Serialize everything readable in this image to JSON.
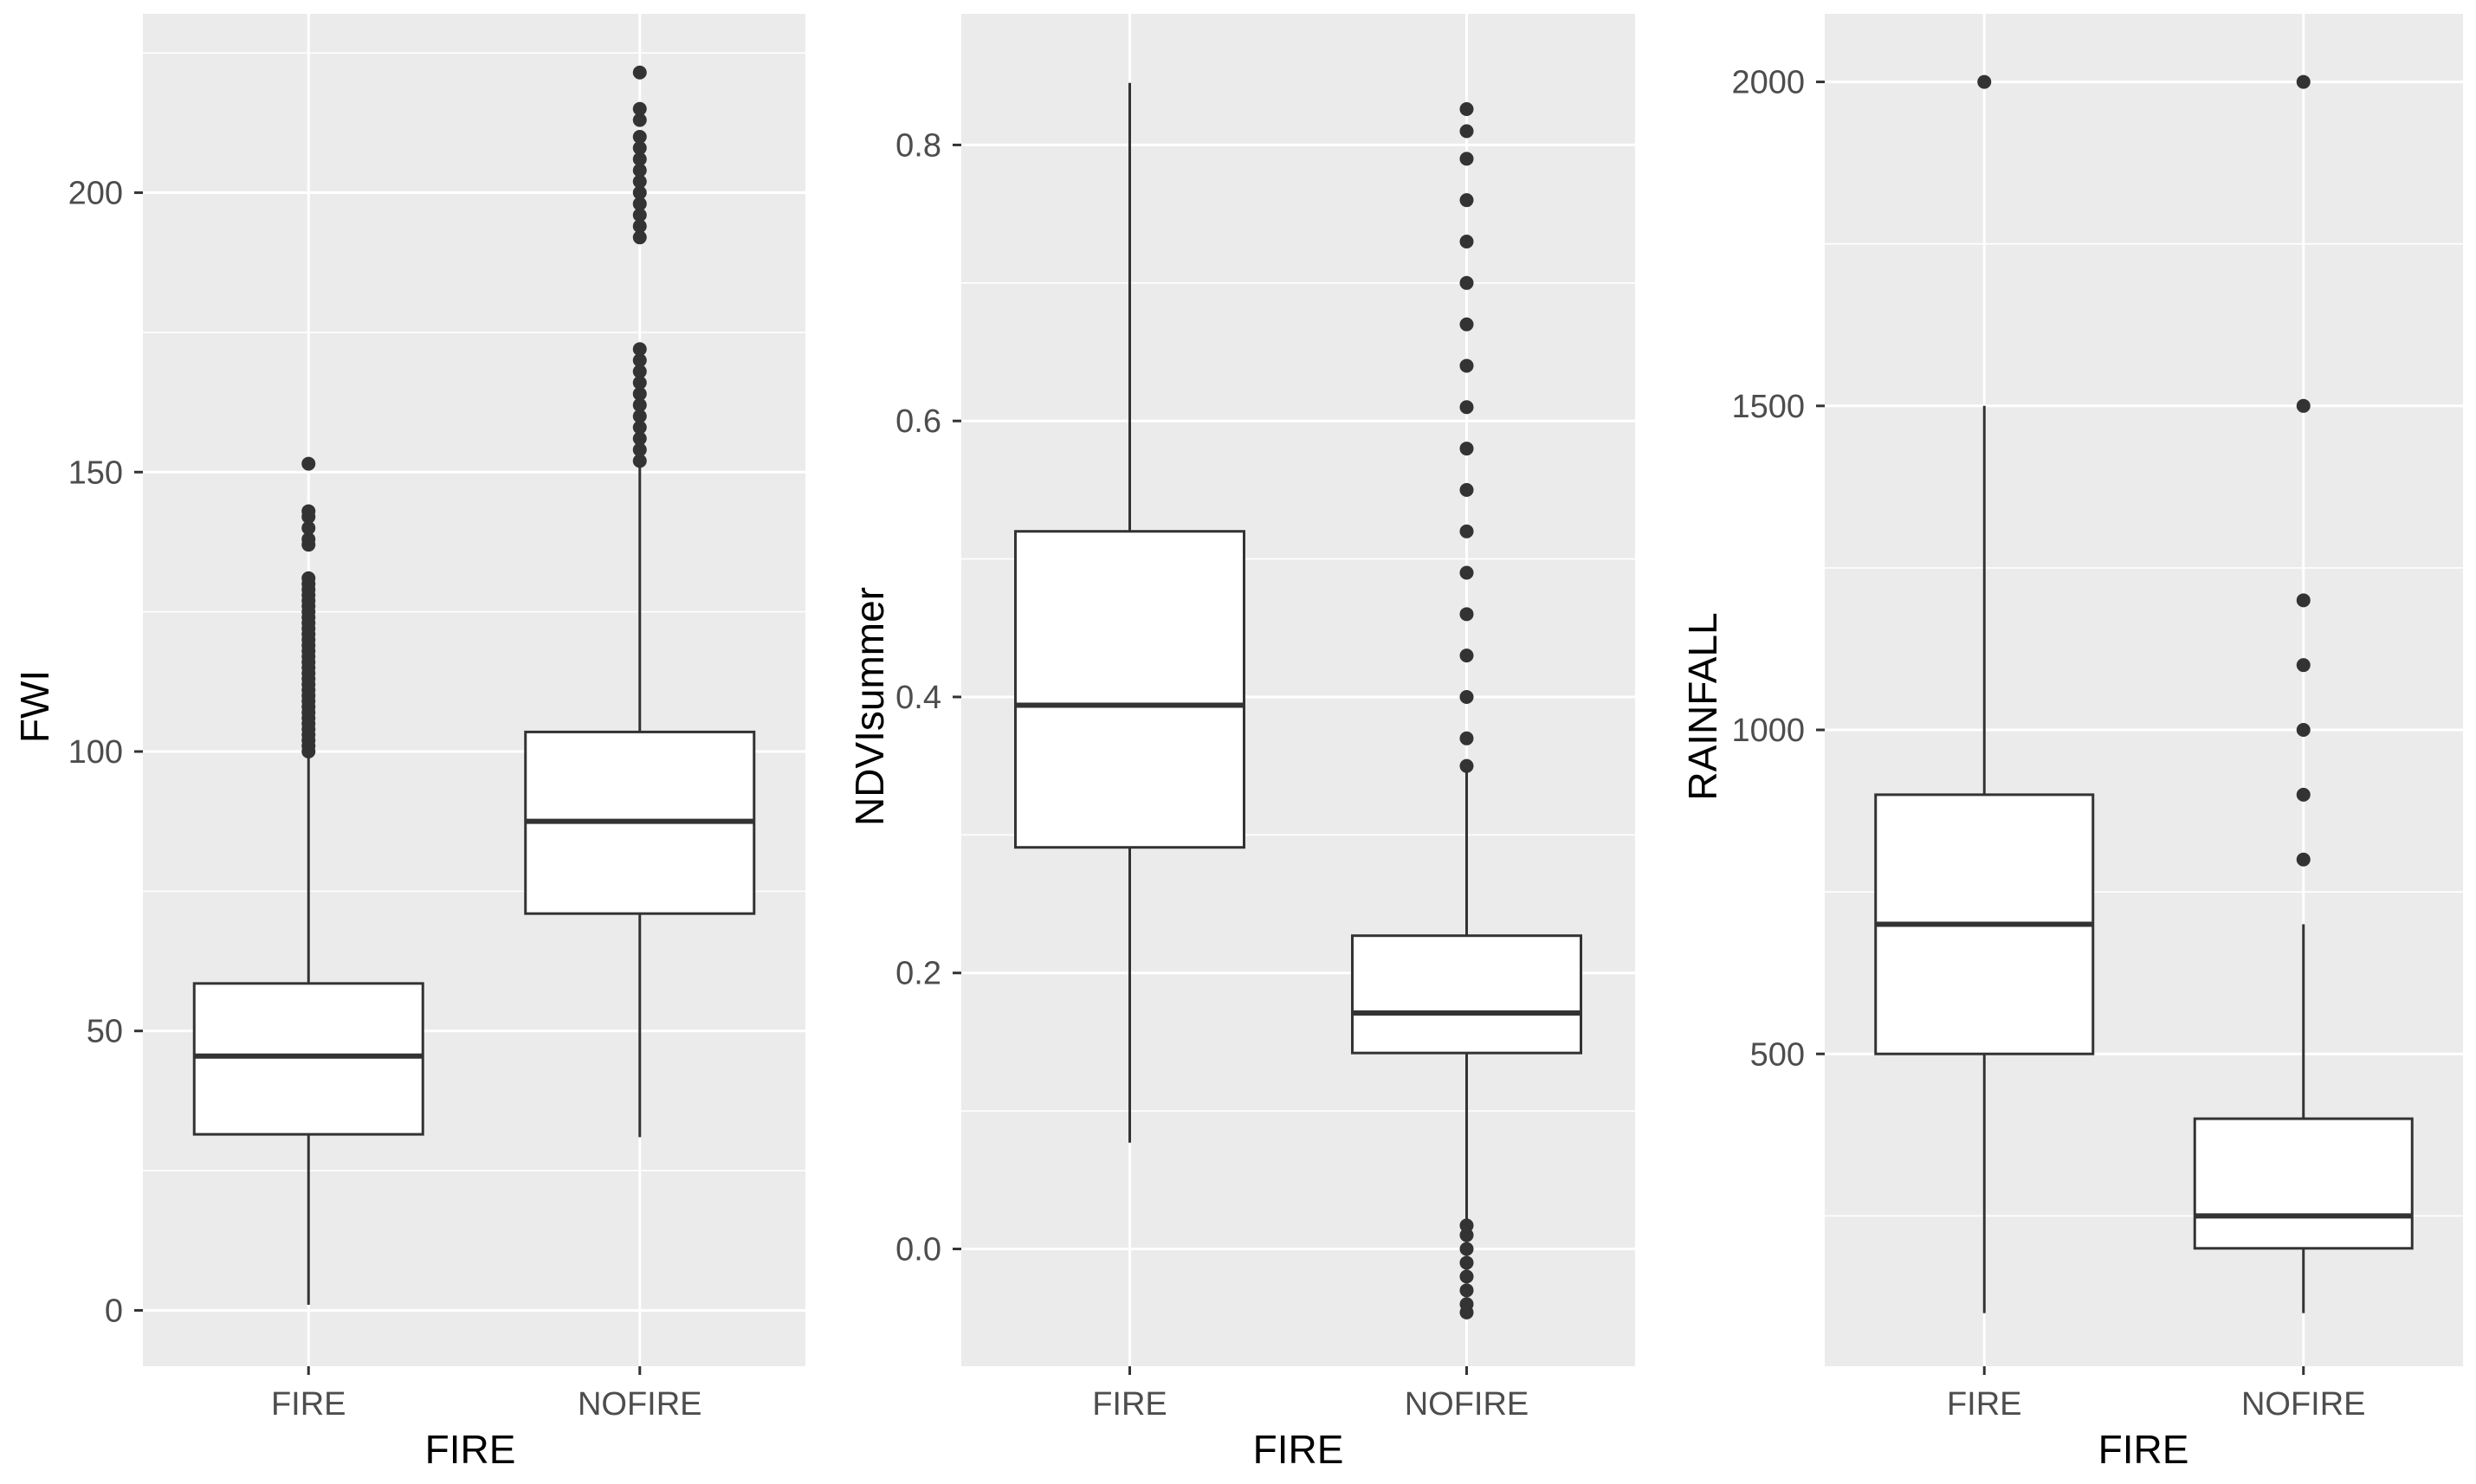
{
  "chart_data": [
    {
      "type": "boxplot",
      "xlabel": "FIRE",
      "ylabel": "FWI",
      "ylim": [
        -10,
        232
      ],
      "yticks": [
        0,
        50,
        100,
        150,
        200
      ],
      "ytick_labels": [
        "0",
        "50",
        "100",
        "150",
        "200"
      ],
      "minor_yticks": [
        25,
        75,
        125,
        175,
        225
      ],
      "categories": [
        "FIRE",
        "NOFIRE"
      ],
      "boxes": [
        {
          "category": "FIRE",
          "whisker_low": 1,
          "q1": 31.5,
          "median": 45.5,
          "q3": 58.5,
          "whisker_high": 99.5,
          "outliers": [
            100,
            101,
            102,
            103,
            104,
            105,
            106,
            107,
            108,
            109,
            110,
            111,
            112,
            113,
            114,
            115,
            116,
            117,
            118,
            119,
            120,
            121,
            122,
            123,
            124,
            125,
            126,
            127,
            128,
            129,
            130,
            131,
            137,
            138,
            140,
            142,
            143,
            151.5
          ]
        },
        {
          "category": "NOFIRE",
          "whisker_low": 31,
          "q1": 71,
          "median": 87.5,
          "q3": 103.5,
          "whisker_high": 151,
          "outliers": [
            152,
            154,
            156,
            158,
            160,
            162,
            164,
            166,
            168,
            170,
            172,
            192,
            194,
            196,
            198,
            200,
            202,
            204,
            206,
            208,
            210,
            213,
            215,
            221.5
          ]
        }
      ],
      "grid": true
    },
    {
      "type": "boxplot",
      "xlabel": "FIRE",
      "ylabel": "NDVIsummer",
      "ylim": [
        -0.085,
        0.895
      ],
      "yticks": [
        0.0,
        0.2,
        0.4,
        0.6,
        0.8
      ],
      "ytick_labels": [
        "0.0",
        "0.2",
        "0.4",
        "0.6",
        "0.8"
      ],
      "minor_yticks": [
        -0.1,
        0.1,
        0.3,
        0.5,
        0.7
      ],
      "categories": [
        "FIRE",
        "NOFIRE"
      ],
      "boxes": [
        {
          "category": "FIRE",
          "whisker_low": 0.077,
          "q1": 0.291,
          "median": 0.394,
          "q3": 0.52,
          "whisker_high": 0.845,
          "outliers": []
        },
        {
          "category": "NOFIRE",
          "whisker_low": 0.02,
          "q1": 0.142,
          "median": 0.171,
          "q3": 0.227,
          "whisker_high": 0.348,
          "outliers": [
            -0.046,
            -0.04,
            -0.03,
            -0.02,
            -0.01,
            0.0,
            0.01,
            0.017,
            0.35,
            0.37,
            0.4,
            0.43,
            0.46,
            0.49,
            0.52,
            0.55,
            0.58,
            0.61,
            0.64,
            0.67,
            0.7,
            0.73,
            0.76,
            0.79,
            0.81,
            0.826
          ]
        }
      ],
      "grid": true
    },
    {
      "type": "boxplot",
      "xlabel": "FIRE",
      "ylabel": "RAINFALL",
      "ylim": [
        18,
        2105
      ],
      "yticks": [
        500,
        1000,
        1500,
        2000
      ],
      "ytick_labels": [
        "500",
        "1000",
        "1500",
        "2000"
      ],
      "minor_yticks": [
        250,
        750,
        1250,
        1750
      ],
      "categories": [
        "FIRE",
        "NOFIRE"
      ],
      "boxes": [
        {
          "category": "FIRE",
          "whisker_low": 100,
          "q1": 500,
          "median": 700,
          "q3": 900,
          "whisker_high": 1500,
          "outliers": [
            2000
          ]
        },
        {
          "category": "NOFIRE",
          "whisker_low": 100,
          "q1": 200,
          "median": 250,
          "q3": 400,
          "whisker_high": 700,
          "outliers": [
            800,
            900,
            1000,
            1100,
            1200,
            1500,
            2000
          ]
        }
      ],
      "grid": true
    }
  ],
  "colors": {
    "panel_background": "#ebebeb",
    "grid": "#ffffff",
    "box_fill": "#ffffff",
    "box_line": "#333333",
    "outlier": "#333333",
    "tick_label": "#4d4d4d",
    "axis_title": "#000000"
  }
}
